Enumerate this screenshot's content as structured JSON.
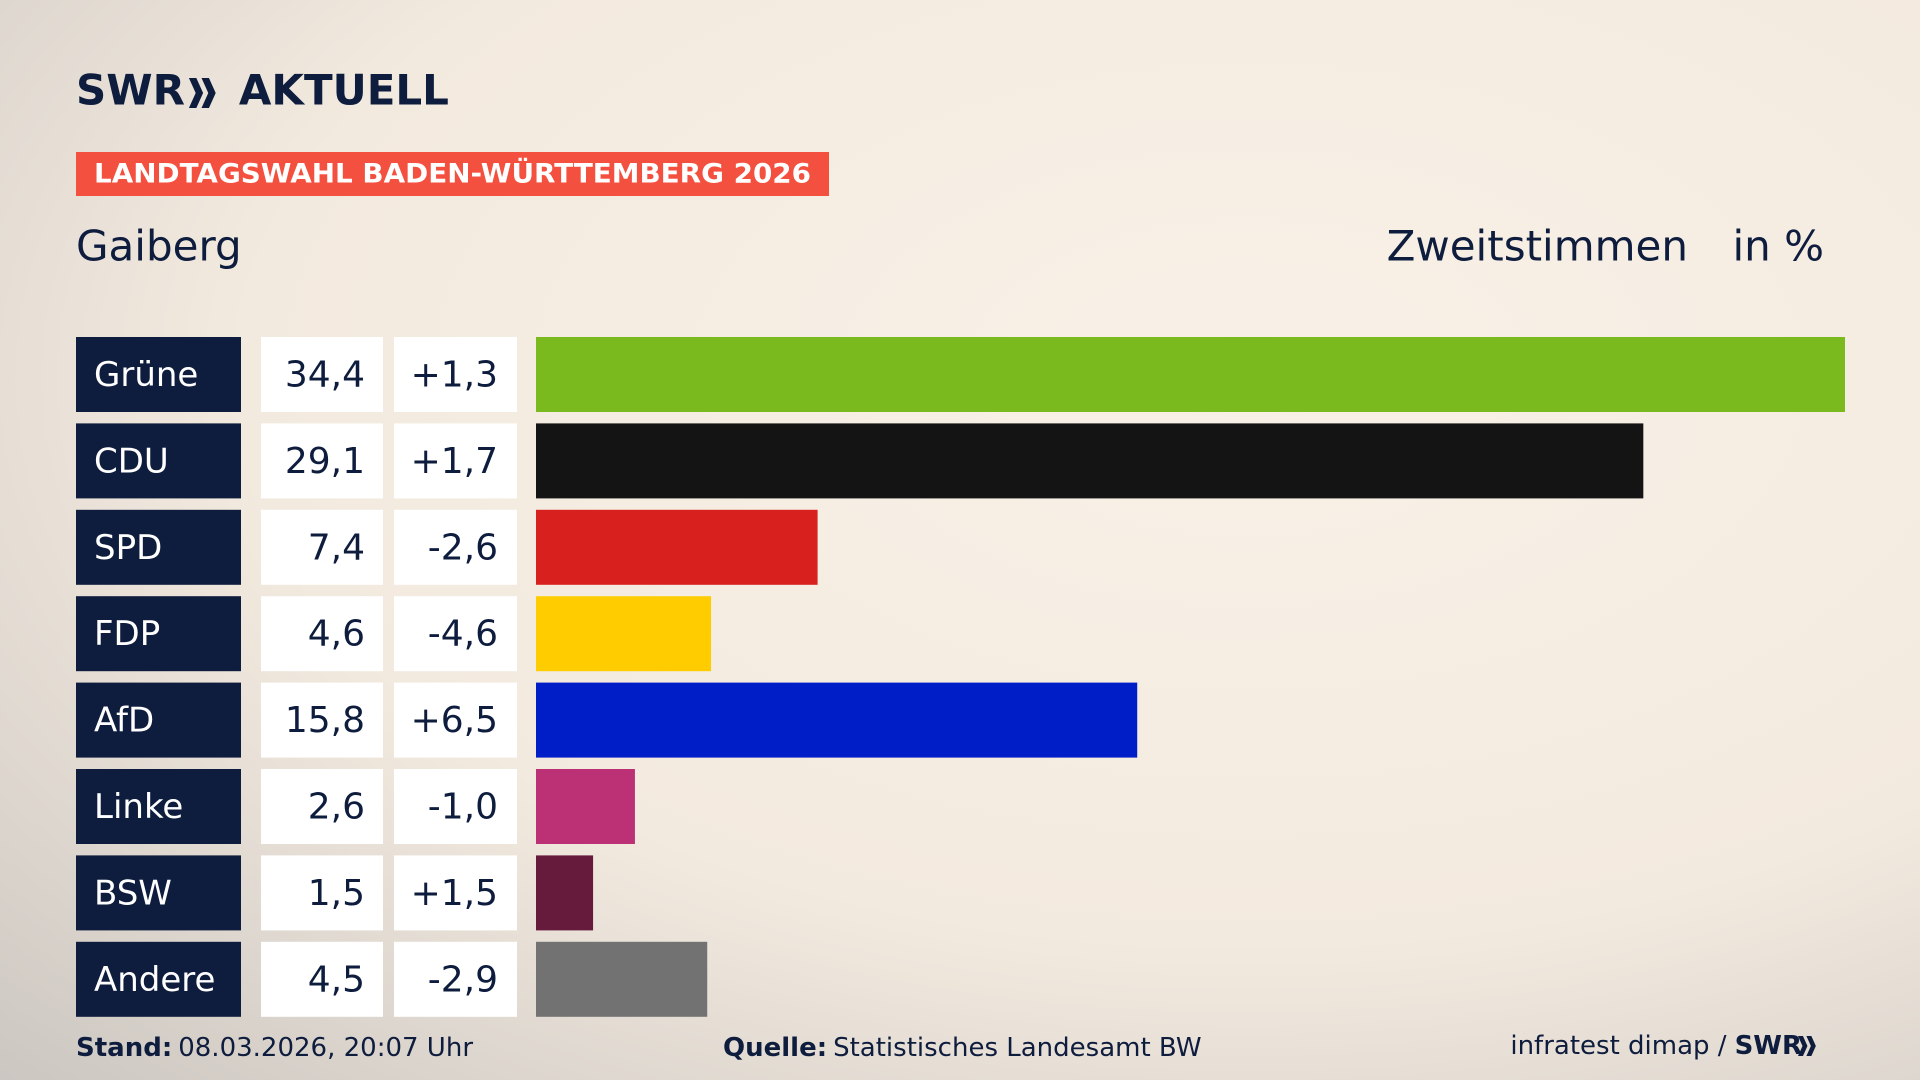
{
  "header": {
    "brand": "SWR",
    "product": "AKTUELL",
    "banner": "LANDTAGSWAHL BADEN-WÜRTTEMBERG 2026"
  },
  "chart_data": {
    "type": "bar",
    "title": "Gaiberg",
    "subtitle": "Zweitstimmen",
    "unit": "in %",
    "categories": [
      "Grüne",
      "CDU",
      "SPD",
      "FDP",
      "AfD",
      "Linke",
      "BSW",
      "Andere"
    ],
    "values": [
      34.4,
      29.1,
      7.4,
      4.6,
      15.8,
      2.6,
      1.5,
      4.5
    ],
    "value_labels": [
      "34,4",
      "29,1",
      "7,4",
      "4,6",
      "15,8",
      "2,6",
      "1,5",
      "4,5"
    ],
    "colors": [
      "#7aba1e",
      "#141414",
      "#d8201f",
      "#ffcc00",
      "#001ec8",
      "#bc3076",
      "#661a3c",
      "#727272"
    ],
    "changes": [
      1.3,
      1.7,
      -2.6,
      -4.6,
      6.5,
      -1.0,
      1.5,
      -2.9
    ],
    "change_labels": [
      "+1,3",
      "+1,7",
      "-2,6",
      "-4,6",
      "+6,5",
      "-1,0",
      "+1,5",
      "-2,9"
    ]
  },
  "footer": {
    "stand_label": "Stand:",
    "stand": "08.03.2026, 20:07 Uhr",
    "source_label": "Quelle:",
    "source": "Statistisches Landesamt BW",
    "credit": "infratest dimap /",
    "credit_brand": "SWR"
  }
}
